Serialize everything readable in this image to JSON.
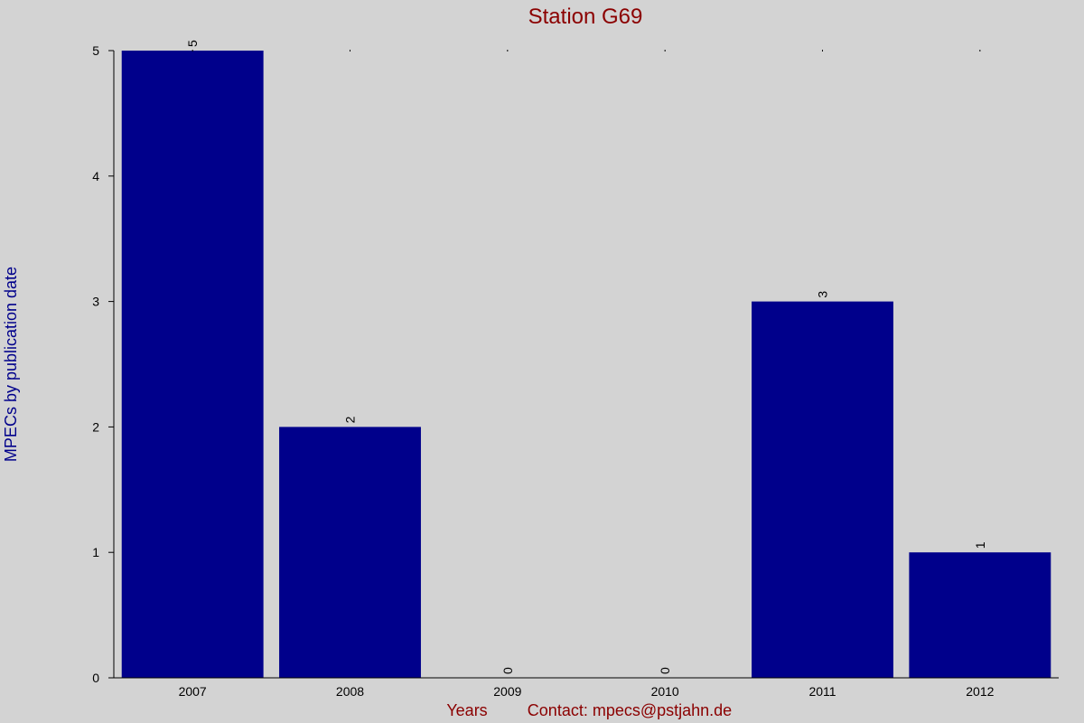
{
  "colors": {
    "background": "#d3d3d3",
    "bar": "#00008b",
    "title": "#8b0000",
    "ylabel": "#00008b",
    "xlabel": "#8b0000"
  },
  "chart_data": {
    "type": "bar",
    "title": "Station G69",
    "xlabel": "Years",
    "ylabel": "MPECs by publication date",
    "contact": "Contact: mpecs@pstjahn.de",
    "categories": [
      "2007",
      "2008",
      "2009",
      "2010",
      "2011",
      "2012"
    ],
    "values": [
      5,
      2,
      0,
      0,
      3,
      1
    ],
    "ylim": [
      0,
      5
    ],
    "yticks": [
      0,
      1,
      2,
      3,
      4,
      5
    ],
    "grid": false,
    "legend": "none"
  }
}
